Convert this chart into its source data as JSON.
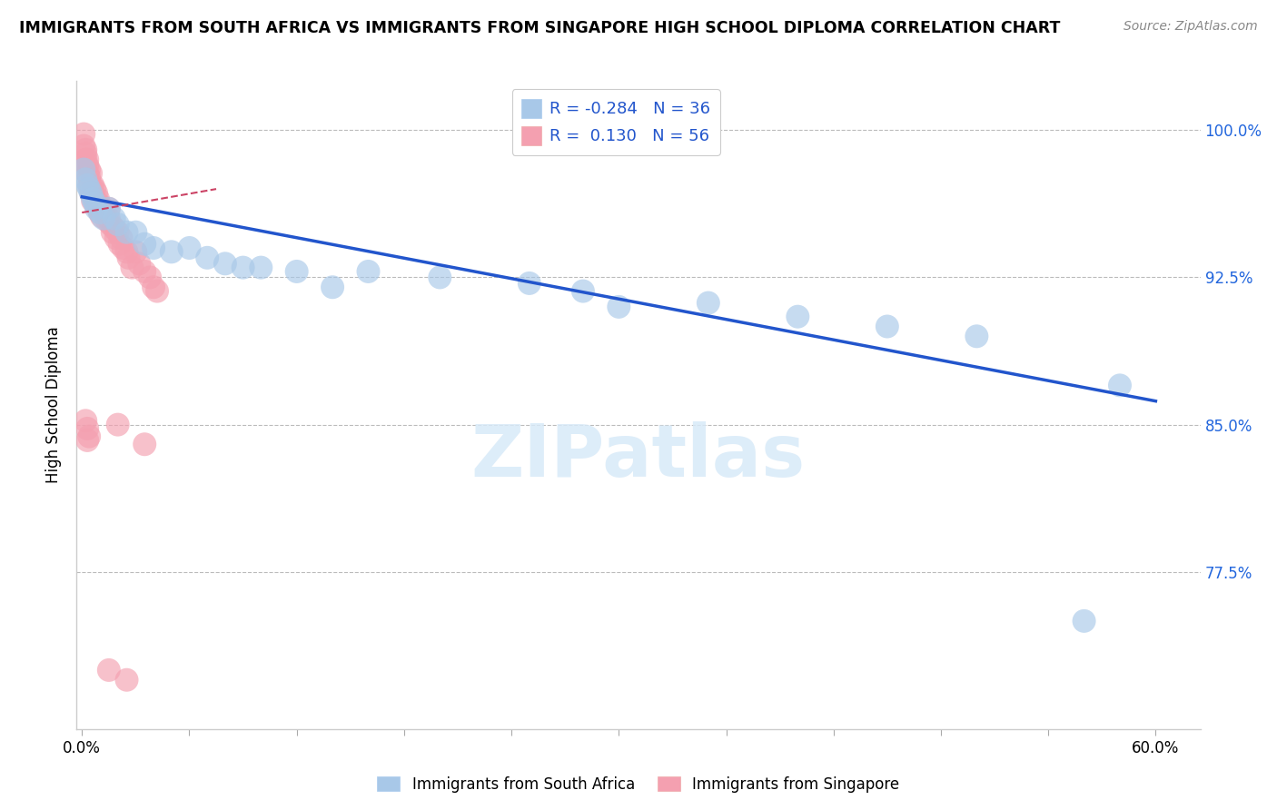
{
  "title": "IMMIGRANTS FROM SOUTH AFRICA VS IMMIGRANTS FROM SINGAPORE HIGH SCHOOL DIPLOMA CORRELATION CHART",
  "source": "Source: ZipAtlas.com",
  "ylabel": "High School Diploma",
  "legend_entry1": "R = -0.284   N = 36",
  "legend_entry2": "R =  0.130   N = 56",
  "legend_label1": "Immigrants from South Africa",
  "legend_label2": "Immigrants from Singapore",
  "color_blue": "#A8C8E8",
  "color_pink": "#F4A0B0",
  "trendline_blue": "#2255CC",
  "trendline_pink": "#CC4466",
  "ymin": 0.695,
  "ymax": 1.025,
  "xmin": -0.003,
  "xmax": 0.625,
  "sa_trend_x0": 0.0,
  "sa_trend_y0": 0.966,
  "sa_trend_x1": 0.6,
  "sa_trend_y1": 0.862,
  "sg_trend_x0": 0.0,
  "sg_trend_y0": 0.958,
  "sg_trend_x1": 0.075,
  "sg_trend_y1": 0.97,
  "sa_x": [
    0.001,
    0.002,
    0.003,
    0.004,
    0.005,
    0.006,
    0.007,
    0.008,
    0.01,
    0.012,
    0.015,
    0.018,
    0.02,
    0.025,
    0.03,
    0.035,
    0.04,
    0.05,
    0.06,
    0.07,
    0.08,
    0.09,
    0.1,
    0.12,
    0.14,
    0.16,
    0.2,
    0.25,
    0.28,
    0.3,
    0.35,
    0.4,
    0.45,
    0.5,
    0.56,
    0.58
  ],
  "sa_y": [
    0.98,
    0.975,
    0.972,
    0.97,
    0.968,
    0.965,
    0.963,
    0.96,
    0.958,
    0.955,
    0.96,
    0.955,
    0.952,
    0.948,
    0.948,
    0.942,
    0.94,
    0.938,
    0.94,
    0.935,
    0.932,
    0.93,
    0.93,
    0.928,
    0.92,
    0.928,
    0.925,
    0.922,
    0.918,
    0.91,
    0.912,
    0.905,
    0.9,
    0.895,
    0.75,
    0.87
  ],
  "sg_x": [
    0.001,
    0.001,
    0.002,
    0.002,
    0.002,
    0.003,
    0.003,
    0.003,
    0.004,
    0.004,
    0.004,
    0.005,
    0.005,
    0.005,
    0.006,
    0.006,
    0.006,
    0.007,
    0.007,
    0.008,
    0.008,
    0.009,
    0.009,
    0.01,
    0.01,
    0.011,
    0.012,
    0.013,
    0.014,
    0.015,
    0.015,
    0.016,
    0.017,
    0.018,
    0.019,
    0.02,
    0.021,
    0.022,
    0.023,
    0.025,
    0.026,
    0.028,
    0.03,
    0.032,
    0.035,
    0.038,
    0.04,
    0.042,
    0.002,
    0.003,
    0.004,
    0.003,
    0.02,
    0.035,
    0.025,
    0.015
  ],
  "sg_y": [
    0.998,
    0.992,
    0.99,
    0.985,
    0.988,
    0.982,
    0.978,
    0.985,
    0.98,
    0.976,
    0.972,
    0.978,
    0.972,
    0.968,
    0.972,
    0.968,
    0.964,
    0.97,
    0.965,
    0.968,
    0.962,
    0.96,
    0.965,
    0.962,
    0.958,
    0.956,
    0.96,
    0.958,
    0.954,
    0.96,
    0.955,
    0.952,
    0.948,
    0.95,
    0.945,
    0.948,
    0.942,
    0.945,
    0.94,
    0.938,
    0.935,
    0.93,
    0.938,
    0.932,
    0.928,
    0.925,
    0.92,
    0.918,
    0.852,
    0.848,
    0.844,
    0.842,
    0.85,
    0.84,
    0.72,
    0.725
  ]
}
